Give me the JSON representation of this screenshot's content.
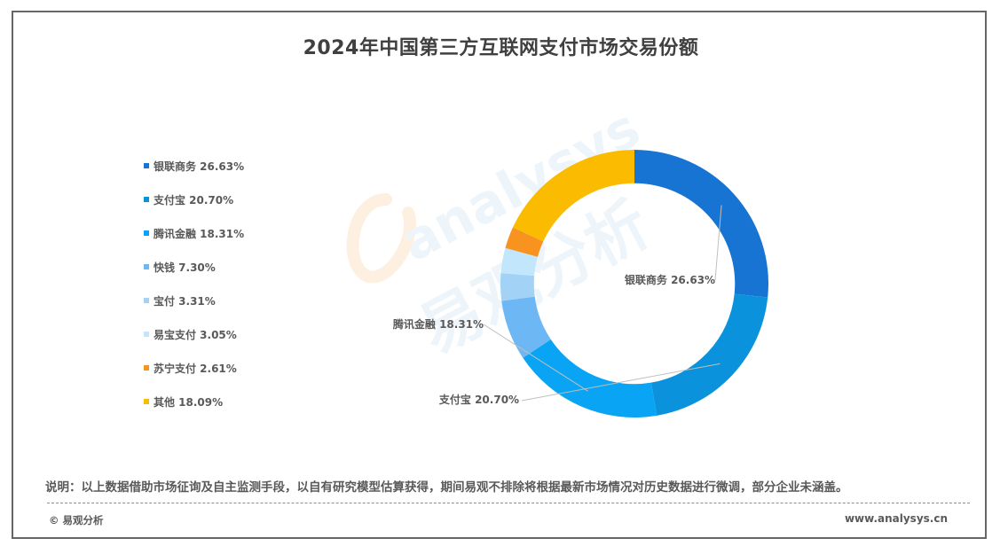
{
  "chart_data": {
    "type": "pie",
    "title": "2024年中国第三方互联网支付市场交易份额",
    "categories": [
      "银联商务",
      "支付宝",
      "腾讯金融",
      "快钱",
      "宝付",
      "易宝支付",
      "苏宁支付",
      "其他"
    ],
    "values": [
      26.63,
      20.7,
      18.31,
      7.3,
      3.31,
      3.05,
      2.61,
      18.09
    ],
    "colors": [
      "#1874d2",
      "#0a93dc",
      "#0aa4f4",
      "#6cb7f4",
      "#a2d2f5",
      "#c2e6fb",
      "#f7931e",
      "#fbbb00"
    ],
    "legend": [
      "银联商务 26.63%",
      "支付宝 20.70%",
      "腾讯金融 18.31%",
      "快钱 7.30%",
      "宝付 3.31%",
      "易宝支付 3.05%",
      "苏宁支付 2.61%",
      "其他 18.09%"
    ],
    "data_labels": [
      {
        "text": "银联商务 26.63%",
        "index": 0
      },
      {
        "text": "腾讯金融 18.31%",
        "index": 2
      },
      {
        "text": "支付宝 20.70%",
        "index": 1
      }
    ],
    "legend_position": "left",
    "inner_radius_ratio": 0.75
  },
  "footer": {
    "note": "说明：以上数据借助市场征询及自主监测手段，以自有研究模型估算获得，期间易观不排除将根据最新市场情况对历史数据进行微调，部分企业未涵盖。",
    "copyright": "© 易观分析",
    "website": "www.analysys.cn"
  },
  "watermark": {
    "latin": "analysys",
    "cn": "易观分析"
  }
}
